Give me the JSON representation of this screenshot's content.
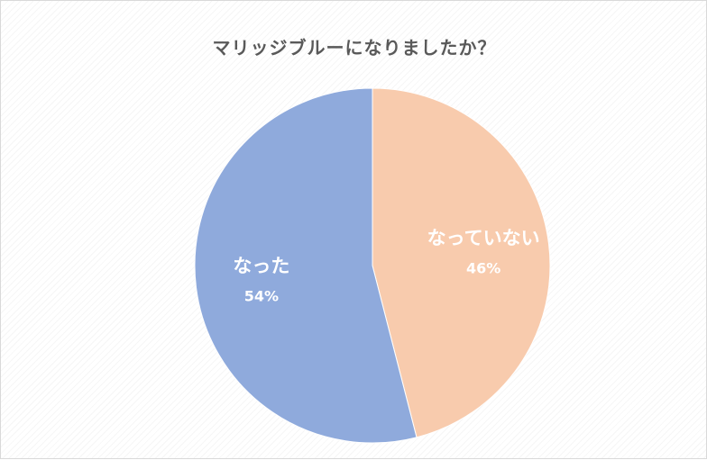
{
  "chart_data": {
    "type": "pie",
    "title": "マリッジブルーになりましたか？",
    "slices": [
      {
        "label": "なっていない",
        "value": 46,
        "value_label": "46%",
        "color": "#f8cbad"
      },
      {
        "label": "なった",
        "value": 54,
        "value_label": "54%",
        "color": "#8faadc"
      }
    ],
    "start_angle_deg": 0,
    "direction": "clockwise",
    "legend": "none"
  }
}
